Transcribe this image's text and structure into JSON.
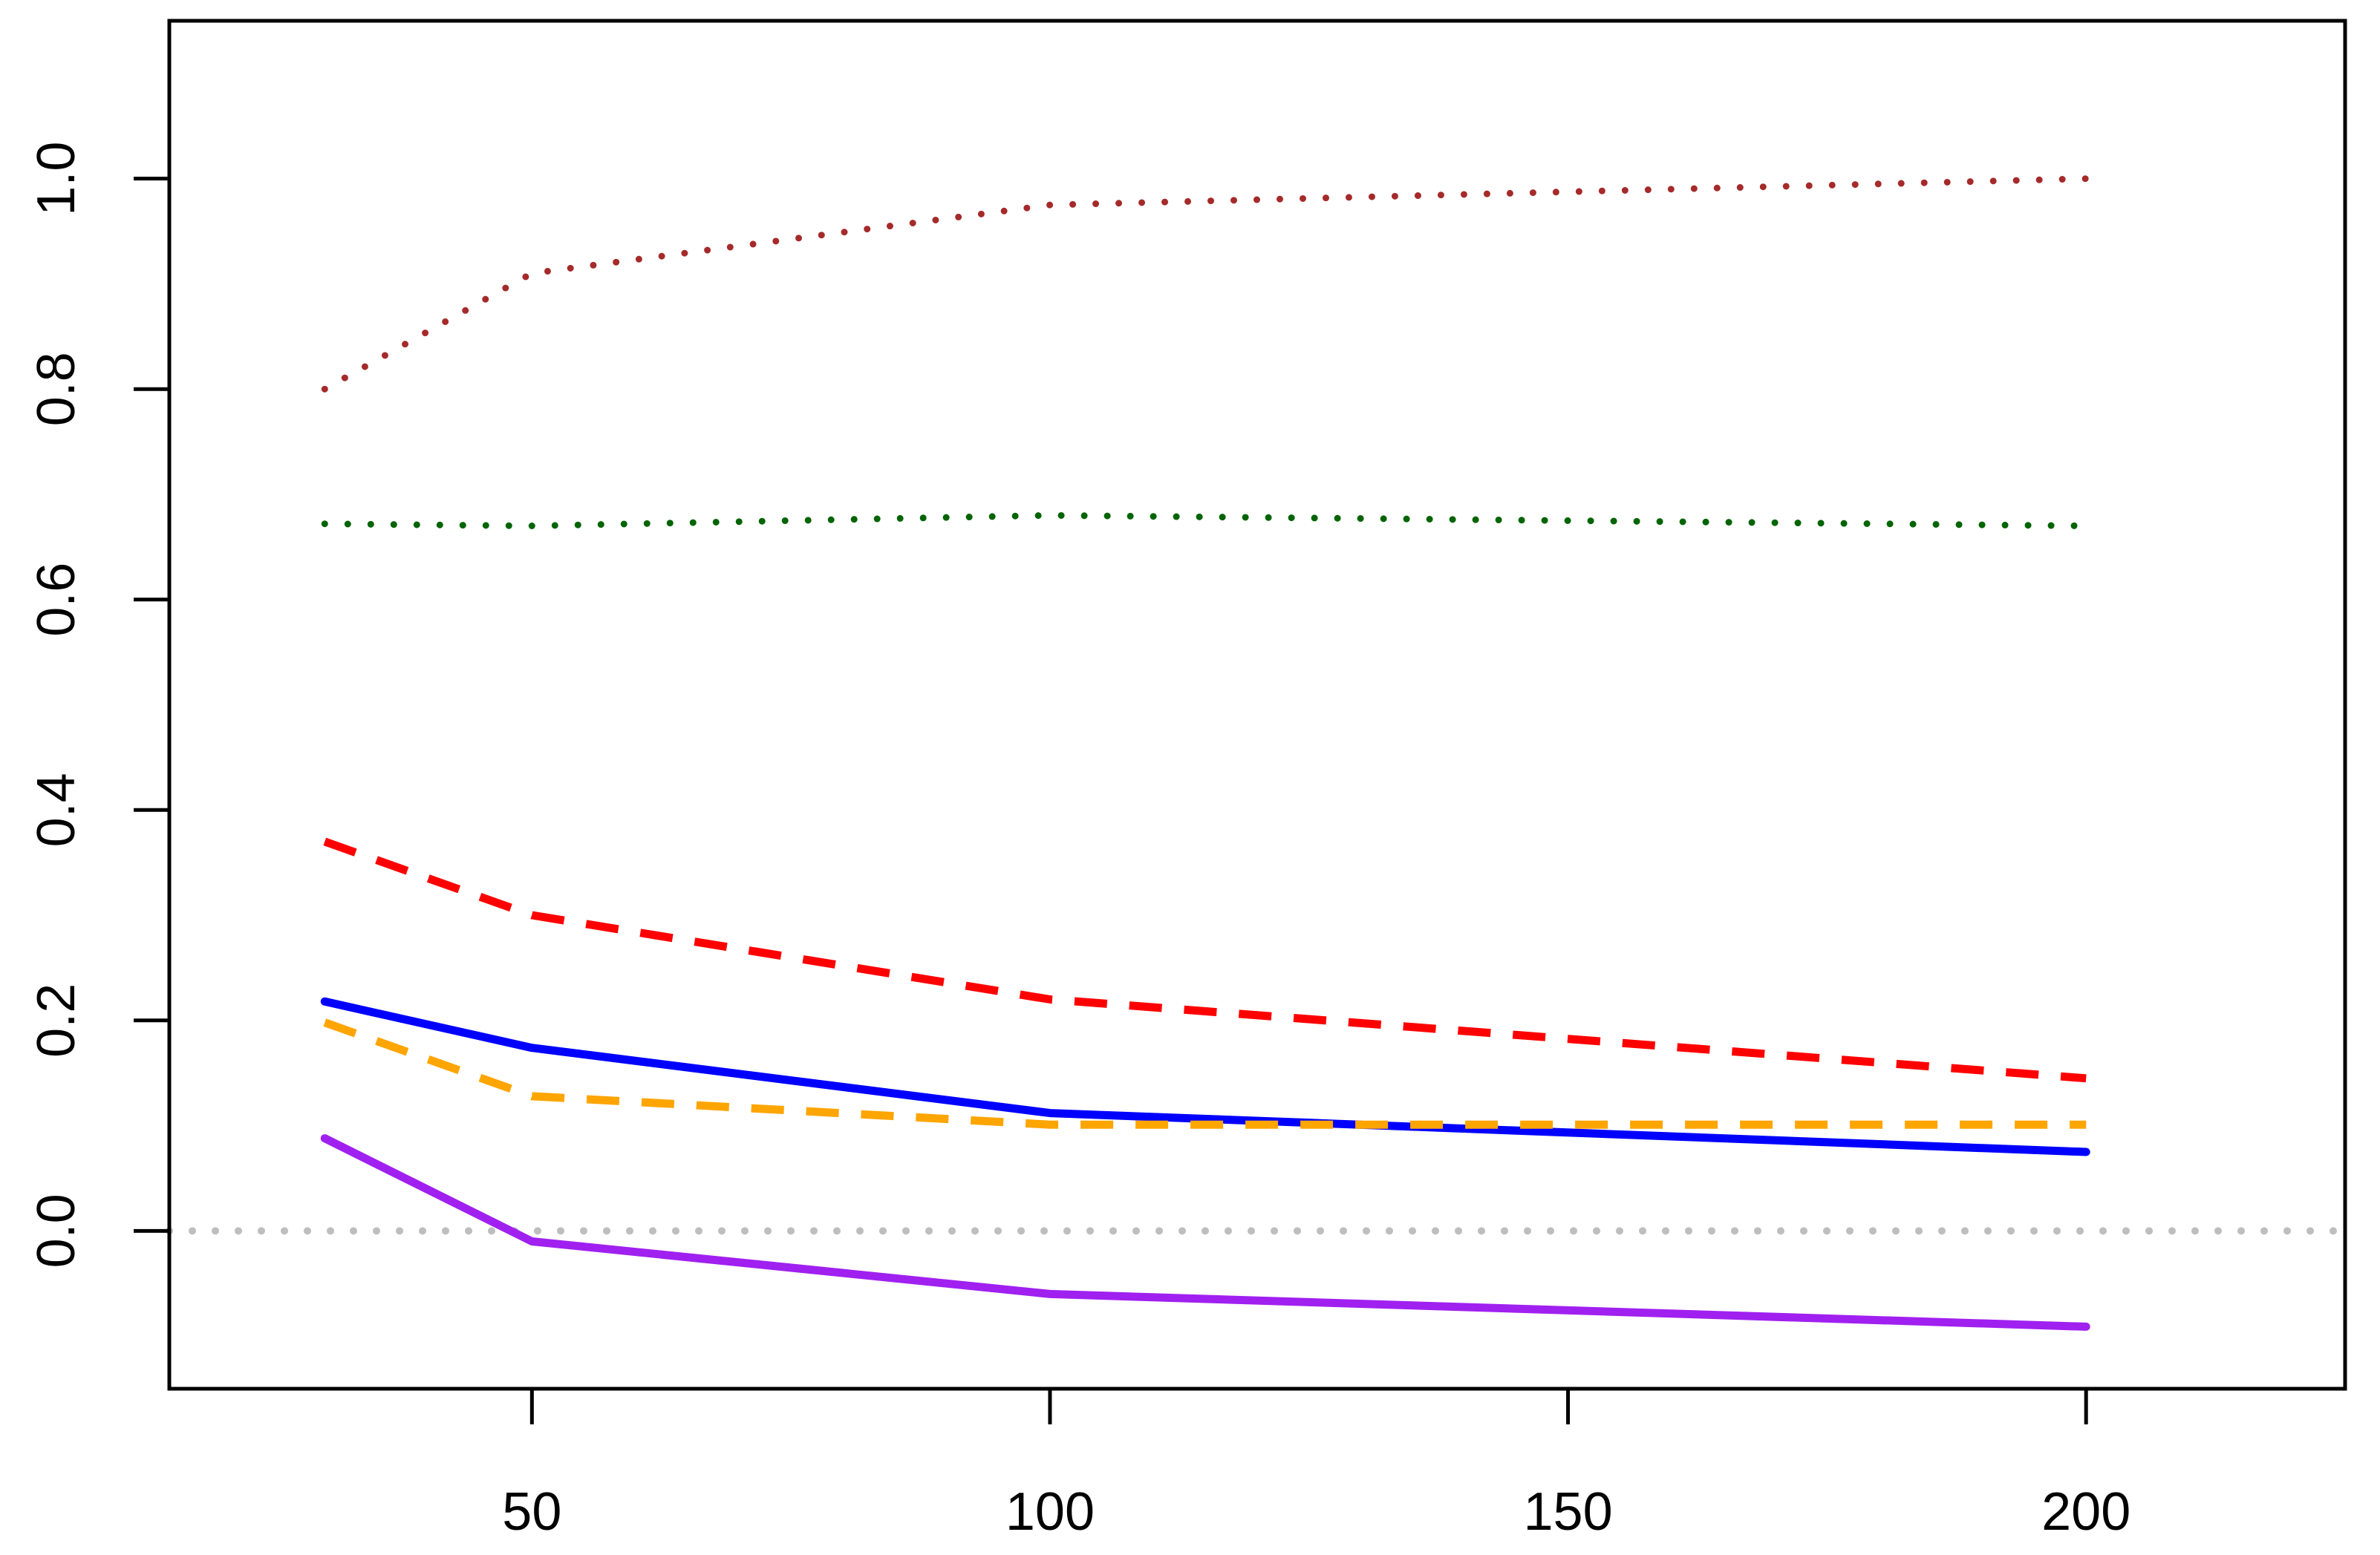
{
  "chart_data": {
    "type": "line",
    "title": "",
    "xlabel": "",
    "ylabel": "",
    "xlim": [
      15,
      225
    ],
    "ylim": [
      -0.15,
      1.15
    ],
    "x_ticks": [
      50,
      100,
      150,
      200
    ],
    "x_tick_labels": [
      "50",
      "100",
      "150",
      "200"
    ],
    "y_ticks": [
      0.0,
      0.2,
      0.4,
      0.6,
      0.8,
      1.0
    ],
    "y_tick_labels": [
      "0.0",
      "0.2",
      "0.4",
      "0.6",
      "0.8",
      "1.0"
    ],
    "grid": false,
    "legend": "none",
    "reference_line": {
      "y": 0.0,
      "color": "#BEBEBE",
      "style": "dotted"
    },
    "series": [
      {
        "color": "#A52A2A",
        "style": "dotted",
        "x": [
          30,
          50,
          100,
          200
        ],
        "y": [
          0.8,
          0.91,
          0.975,
          1.0
        ]
      },
      {
        "color": "#006400",
        "style": "dotted",
        "x": [
          30,
          50,
          100,
          200
        ],
        "y": [
          0.672,
          0.67,
          0.68,
          0.67
        ]
      },
      {
        "color": "#FF0000",
        "style": "dashed",
        "x": [
          30,
          50,
          100,
          200
        ],
        "y": [
          0.37,
          0.3,
          0.22,
          0.145
        ]
      },
      {
        "color": "#0000FF",
        "style": "solid",
        "x": [
          30,
          50,
          100,
          200
        ],
        "y": [
          0.218,
          0.174,
          0.112,
          0.075
        ]
      },
      {
        "color": "#FFA500",
        "style": "dashed",
        "x": [
          30,
          50,
          100,
          200
        ],
        "y": [
          0.198,
          0.128,
          0.101,
          0.101
        ]
      },
      {
        "color": "#A020F0",
        "style": "solid",
        "x": [
          30,
          50,
          100,
          200
        ],
        "y": [
          0.088,
          -0.01,
          -0.06,
          -0.091
        ]
      }
    ]
  }
}
